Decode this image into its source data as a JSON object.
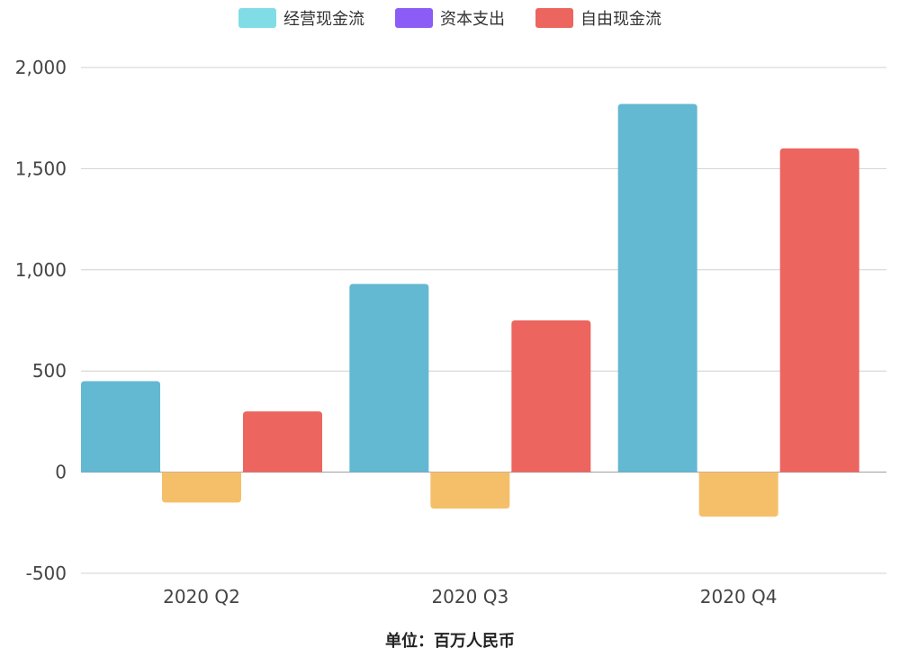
{
  "chart_data": {
    "type": "bar",
    "categories": [
      "2020 Q2",
      "2020 Q3",
      "2020 Q4"
    ],
    "series": [
      {
        "name": "经营现金流",
        "values": [
          450,
          930,
          1820
        ],
        "color": "#63b8d2",
        "legend_color": "#80dde6"
      },
      {
        "name": "资本支出",
        "values": [
          -150,
          -180,
          -220
        ],
        "color": "#f5bf6a",
        "legend_color": "#8b5cf6"
      },
      {
        "name": "自由现金流",
        "values": [
          300,
          750,
          1600
        ],
        "color": "#ec655f",
        "legend_color": "#ec655f"
      }
    ],
    "yticks": [
      -500,
      0,
      500,
      1000,
      1500,
      2000
    ],
    "ytick_labels": [
      "-500",
      "0",
      "500",
      "1,000",
      "1,500",
      "2,000"
    ],
    "ylim": [
      -500,
      2000
    ],
    "grid": true,
    "legend_position": "top-center",
    "unit_label": "单位：百万人民币"
  }
}
